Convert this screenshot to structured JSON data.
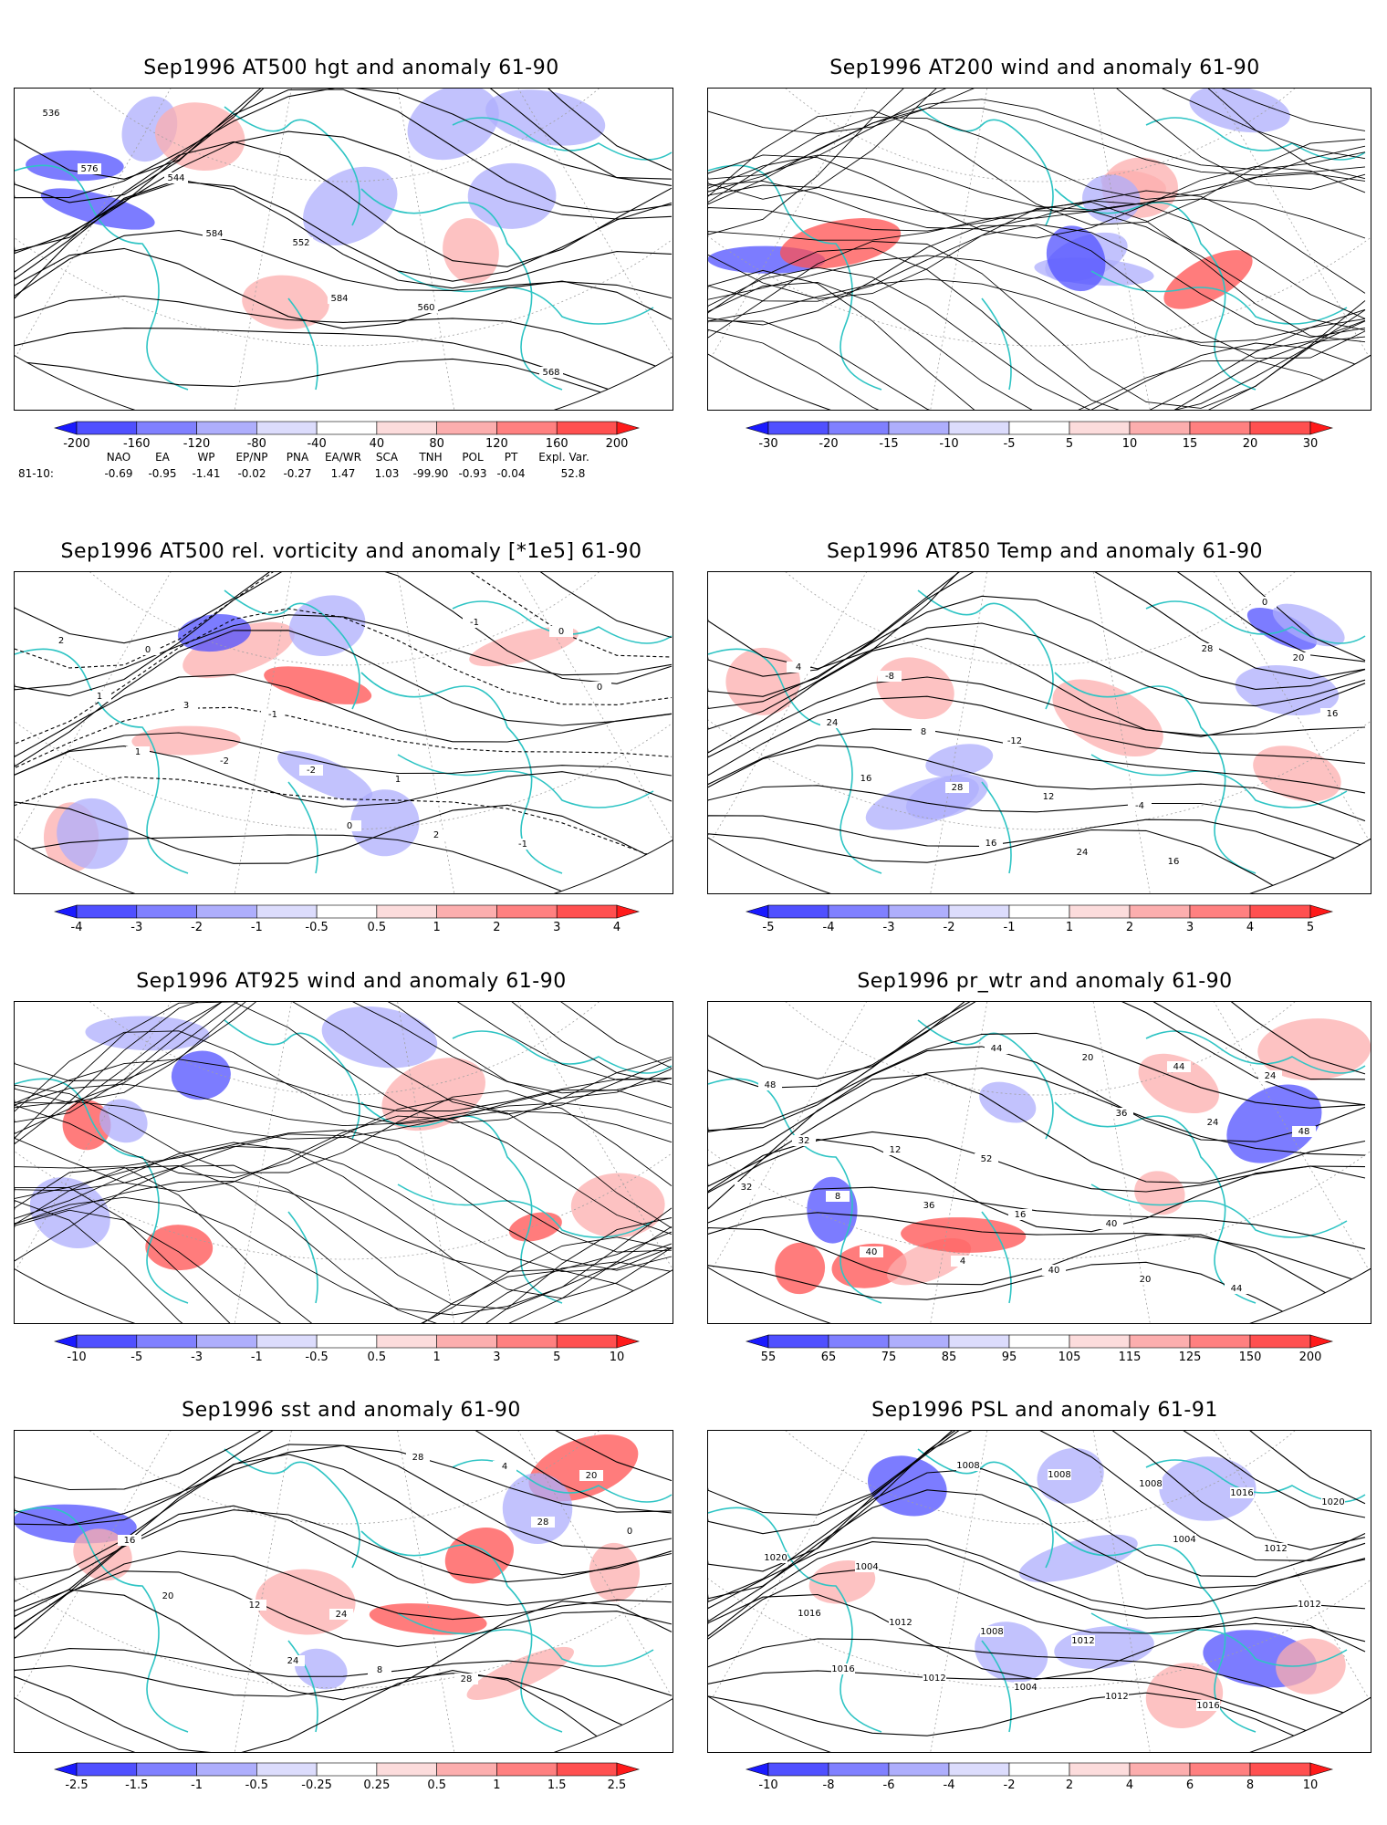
{
  "panels": [
    {
      "title": "Sep1996 AT500 hgt and anomaly 61-90",
      "map_type": "height",
      "contour_labels": [
        "536",
        "544",
        "552",
        "560",
        "568",
        "576",
        "584",
        "584"
      ],
      "colorbar": [
        "-200",
        "-160",
        "-120",
        "-80",
        "-40",
        "40",
        "80",
        "120",
        "160",
        "200"
      ]
    },
    {
      "title": "Sep1996 AT200 wind and anomaly 61-90",
      "map_type": "streamlines",
      "contour_labels": [],
      "colorbar": [
        "-30",
        "-20",
        "-15",
        "-10",
        "-5",
        "5",
        "10",
        "15",
        "20",
        "30"
      ]
    },
    {
      "title": "Sep1996 AT500 rel. vorticity and anomaly [*1e5] 61-90",
      "map_type": "vorticity",
      "contour_labels": [
        "0",
        "-1",
        "1",
        "-1",
        "2",
        "3",
        "-2",
        "2",
        "0",
        "1",
        "-2",
        "0",
        "-1",
        "0",
        "1"
      ],
      "colorbar": [
        "-4",
        "-3",
        "-2",
        "-1",
        "-0.5",
        "0.5",
        "1",
        "2",
        "3",
        "4"
      ]
    },
    {
      "title": "Sep1996 AT850 Temp and anomaly 61-90",
      "map_type": "temperature",
      "contour_labels": [
        "-8",
        "-12",
        "-4",
        "0",
        "4",
        "8",
        "12",
        "16",
        "20",
        "24",
        "28",
        "24",
        "28",
        "16",
        "16",
        "16"
      ],
      "colorbar": [
        "-5",
        "-4",
        "-3",
        "-2",
        "-1",
        "1",
        "2",
        "3",
        "4",
        "5"
      ]
    },
    {
      "title": "Sep1996 AT925 wind and anomaly 61-90",
      "map_type": "streamlines",
      "contour_labels": [],
      "colorbar": [
        "-10",
        "-5",
        "-3",
        "-1",
        "-0.5",
        "0.5",
        "1",
        "3",
        "5",
        "10"
      ]
    },
    {
      "title": "Sep1996 pr_wtr and anomaly 61-90",
      "map_type": "precip",
      "contour_labels": [
        "52",
        "40",
        "44",
        "48",
        "12",
        "16",
        "20",
        "24",
        "32",
        "36",
        "40",
        "44",
        "48",
        "8",
        "4",
        "20",
        "24",
        "32",
        "40",
        "44",
        "36"
      ],
      "colorbar": [
        "55",
        "65",
        "75",
        "85",
        "95",
        "105",
        "115",
        "125",
        "150",
        "200"
      ]
    },
    {
      "title": "Sep1996 sst and anomaly 61-90",
      "map_type": "sst",
      "contour_labels": [
        "24",
        "28",
        "20",
        "16",
        "12",
        "8",
        "4",
        "0",
        "20",
        "24",
        "28",
        "28"
      ],
      "colorbar": [
        "-2.5",
        "-1.5",
        "-1",
        "-0.5",
        "-0.25",
        "0.25",
        "0.5",
        "1",
        "1.5",
        "2.5"
      ]
    },
    {
      "title": "Sep1996 PSL and anomaly 61-91",
      "map_type": "pressure",
      "contour_labels": [
        "1012",
        "1016",
        "1020",
        "1004",
        "1008",
        "1012",
        "1016",
        "1020",
        "1012",
        "1004",
        "1008",
        "1012",
        "1016",
        "1012",
        "1008",
        "1004",
        "1012",
        "1016",
        "1008"
      ],
      "colorbar": [
        "-10",
        "-8",
        "-6",
        "-4",
        "-2",
        "2",
        "4",
        "6",
        "8",
        "10"
      ]
    }
  ],
  "indices": {
    "headers": [
      "NAO",
      "EA",
      "WP",
      "EP/NP",
      "PNA",
      "EA/WR",
      "SCA",
      "TNH",
      "POL",
      "PT",
      "Expl. Var."
    ],
    "row_label": "81-10:",
    "values": [
      "-0.69",
      "-0.95",
      "-1.41",
      "-0.02",
      "-0.27",
      "1.47",
      "1.03",
      "-99.90",
      "-0.93",
      "-0.04",
      "52.8"
    ]
  },
  "colors": {
    "coast": "#2ec4c4",
    "neg_strong": "#1a1aff",
    "pos_strong": "#ff1a1a",
    "contour": "#000000",
    "grid": "#a0a0a0"
  }
}
